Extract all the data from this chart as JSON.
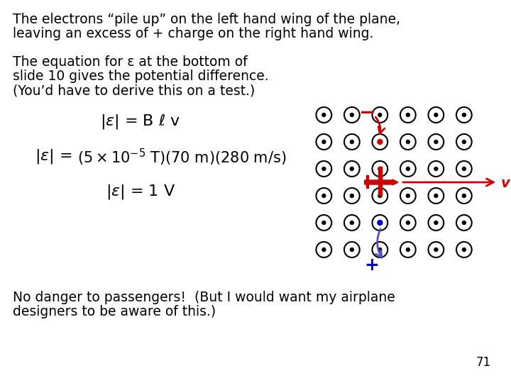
{
  "bg_color": "#ffffff",
  "title_text1": "The electrons “pile up” on the left hand wing of the plane,",
  "title_text2": "leaving an excess of + charge on the right hand wing.",
  "para2_line1": "The equation for ε at the bottom of",
  "para2_line2": "slide 10 gives the potential difference.",
  "para2_line3": "(You’d have to derive this on a test.)",
  "eq1": "|\\u03b5| = B ℓ v",
  "eq2_pre": "|\\u03b5| =",
  "eq2_vals": "(5×10⁻⁵ T)(70 m)(280 m/s)",
  "eq3": "|\\u03b5| = 1 V",
  "bottom_text1": "No danger to passengers!  (But I would want my airplane",
  "bottom_text2": "designers to be aware of this.)",
  "page_num": "71",
  "dot_grid_rows": 6,
  "dot_grid_cols": 6,
  "dot_color": "#000000",
  "plane_color": "#cc0000",
  "arrow_v_color": "#cc0000",
  "minus_color": "#cc0000",
  "plus_color": "#0000cc",
  "plus_arrow_color": "#5555bb"
}
